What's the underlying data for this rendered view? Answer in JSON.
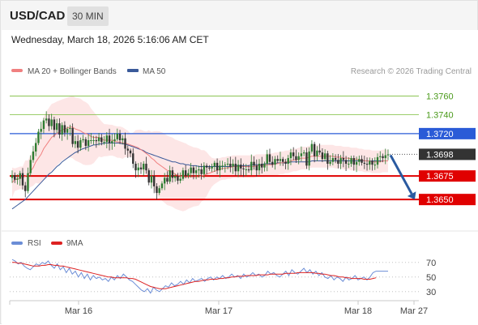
{
  "header": {
    "symbol": "USD/CAD",
    "interval": "30 MIN"
  },
  "datetime": "Wednesday, March 18, 2026 5:16:06 AM CET",
  "legend": {
    "ma20": "MA 20 + Bollinger Bands",
    "ma50": "MA 50"
  },
  "credit": "Research © 2026 Trading Central",
  "rsi_legend": {
    "rsi": "RSI",
    "ma9": "9MA"
  },
  "colors": {
    "ma20": "#f08080",
    "bollinger_fill": "#fde2e2",
    "ma50": "#3a5a9a",
    "up_candle": "#2e7d32",
    "down_candle": "#333333",
    "resistance": "#7cbd3c",
    "pivot": "#2a5bd7",
    "support": "#e00000",
    "current_price": "#333333",
    "arrow": "#2a5aa0",
    "rsi": "#6b8dd6",
    "rsi_ma": "#dd2222"
  },
  "chart_data": [
    {
      "type": "candlestick",
      "x_ticks": [
        "Mar 16",
        "Mar 17",
        "Mar 18",
        "Mar 27"
      ],
      "ylim": [
        1.362,
        1.3775
      ],
      "levels": [
        {
          "label": "1.3760",
          "value": 1.376,
          "role": "resistance"
        },
        {
          "label": "1.3740",
          "value": 1.374,
          "role": "resistance"
        },
        {
          "label": "1.3720",
          "value": 1.372,
          "role": "pivot"
        },
        {
          "label": "1.3675",
          "value": 1.3675,
          "role": "support"
        },
        {
          "label": "1.3650",
          "value": 1.365,
          "role": "support"
        }
      ],
      "current_price": {
        "label": "1.3698",
        "value": 1.3698
      },
      "forecast_arrow": {
        "from": 1.3698,
        "to": 1.365
      },
      "close": [
        1.3676,
        1.3671,
        1.3672,
        1.3678,
        1.3665,
        1.3659,
        1.3678,
        1.3692,
        1.3701,
        1.371,
        1.3722,
        1.3725,
        1.3734,
        1.3736,
        1.3728,
        1.3735,
        1.3724,
        1.3731,
        1.3719,
        1.3729,
        1.3721,
        1.3725,
        1.3726,
        1.3709,
        1.3712,
        1.3705,
        1.3713,
        1.3714,
        1.3707,
        1.3713,
        1.3713,
        1.3713,
        1.3712,
        1.3716,
        1.3711,
        1.3711,
        1.3718,
        1.371,
        1.3712,
        1.3714,
        1.372,
        1.3713,
        1.3715,
        1.3704,
        1.3702,
        1.3699,
        1.3688,
        1.3681,
        1.3684,
        1.3682,
        1.3688,
        1.3681,
        1.3668,
        1.3675,
        1.3664,
        1.3657,
        1.3662,
        1.3667,
        1.3673,
        1.3669,
        1.3681,
        1.3673,
        1.3675,
        1.367,
        1.3672,
        1.3681,
        1.3675,
        1.3678,
        1.3684,
        1.3678,
        1.3681,
        1.3682,
        1.3677,
        1.3686,
        1.3684,
        1.3683,
        1.3685,
        1.3689,
        1.3681,
        1.3686,
        1.3686,
        1.3687,
        1.3688,
        1.3685,
        1.3688,
        1.368,
        1.3687,
        1.3683,
        1.3682,
        1.3682,
        1.3681,
        1.369,
        1.3686,
        1.3681,
        1.3688,
        1.3684,
        1.3688,
        1.3698,
        1.369,
        1.3687,
        1.3693,
        1.3691,
        1.3693,
        1.369,
        1.3688,
        1.3694,
        1.37,
        1.3696,
        1.3692,
        1.3696,
        1.3699,
        1.37,
        1.3686,
        1.3701,
        1.3709,
        1.3696,
        1.3702,
        1.37,
        1.3693,
        1.3699,
        1.3688,
        1.369,
        1.3694,
        1.3692,
        1.3688,
        1.3694,
        1.3692,
        1.3688,
        1.3688,
        1.3694,
        1.3687,
        1.369,
        1.3693,
        1.3689,
        1.3688,
        1.3687,
        1.3691,
        1.3687,
        1.3687,
        1.3695,
        1.3696,
        1.3694,
        1.3697,
        1.3698
      ],
      "ma20": [
        1.3668,
        1.3671,
        1.3672,
        1.3673,
        1.3673,
        1.3675,
        1.3676,
        1.368,
        1.3684,
        1.369,
        1.3694,
        1.3698,
        1.3704,
        1.3708,
        1.3712,
        1.3716,
        1.3718,
        1.372,
        1.3722,
        1.3724,
        1.3725,
        1.3726,
        1.3727,
        1.3727,
        1.3725,
        1.3724,
        1.3723,
        1.3721,
        1.372,
        1.3719,
        1.3717,
        1.3716,
        1.3716,
        1.3716,
        1.3714,
        1.3713,
        1.3713,
        1.3713,
        1.3713,
        1.3712,
        1.3711,
        1.3711,
        1.371,
        1.371,
        1.3709,
        1.3708,
        1.3707,
        1.3706,
        1.3705,
        1.3703,
        1.3701,
        1.3699,
        1.3697,
        1.3694,
        1.3692,
        1.3689,
        1.3687,
        1.3685,
        1.3683,
        1.3681,
        1.368,
        1.3679,
        1.3677,
        1.3676,
        1.3675,
        1.3674,
        1.3674,
        1.3674,
        1.3674,
        1.3674,
        1.3674,
        1.3674,
        1.3675,
        1.3676,
        1.3677,
        1.3678,
        1.3679,
        1.368,
        1.3681,
        1.3682,
        1.3683,
        1.3683,
        1.3684,
        1.3684,
        1.3685,
        1.3685,
        1.3685,
        1.3685,
        1.3685,
        1.3685,
        1.3685,
        1.3685,
        1.3685,
        1.3686,
        1.3686,
        1.3686,
        1.3686,
        1.3687,
        1.3687,
        1.3687,
        1.3688,
        1.3688,
        1.3689,
        1.3689,
        1.369,
        1.369,
        1.3691,
        1.3692,
        1.3692,
        1.3693,
        1.3694,
        1.3694,
        1.3694,
        1.3695,
        1.3696,
        1.3696,
        1.3696,
        1.3696,
        1.3696,
        1.3696,
        1.3696,
        1.3696,
        1.3696,
        1.3695,
        1.3695,
        1.3695,
        1.3694,
        1.3694,
        1.3694,
        1.3693,
        1.3693,
        1.3693,
        1.3692,
        1.3692,
        1.3691,
        1.3691,
        1.3691,
        1.369,
        1.369,
        1.369,
        1.369,
        1.3691,
        1.3691,
        1.3691
      ],
      "ma50": [
        1.364,
        1.3642,
        1.3644,
        1.3646,
        1.3648,
        1.365,
        1.3653,
        1.3656,
        1.3659,
        1.3662,
        1.3665,
        1.3668,
        1.3671,
        1.3674,
        1.3677,
        1.3679,
        1.3682,
        1.3685,
        1.3687,
        1.369,
        1.3692,
        1.3694,
        1.3696,
        1.3698,
        1.37,
        1.3701,
        1.3703,
        1.3704,
        1.3705,
        1.3706,
        1.3707,
        1.3708,
        1.3708,
        1.3709,
        1.3709,
        1.371,
        1.371,
        1.371,
        1.371,
        1.371,
        1.371,
        1.371,
        1.3709,
        1.3709,
        1.3708,
        1.3707,
        1.3706,
        1.3705,
        1.3704,
        1.3703,
        1.3702,
        1.37,
        1.3699,
        1.3698,
        1.3697,
        1.3696,
        1.3695,
        1.3694,
        1.3693,
        1.3692,
        1.3691,
        1.369,
        1.369,
        1.3689,
        1.3688,
        1.3688,
        1.3687,
        1.3687,
        1.3686,
        1.3686,
        1.3686,
        1.3685,
        1.3685,
        1.3685,
        1.3685,
        1.3685,
        1.3685,
        1.3685,
        1.3685,
        1.3685,
        1.3685,
        1.3685,
        1.3685,
        1.3685,
        1.3685,
        1.3686,
        1.3686,
        1.3686,
        1.3686,
        1.3686,
        1.3686,
        1.3687,
        1.3687,
        1.3687,
        1.3687,
        1.3687,
        1.3688,
        1.3688,
        1.3688,
        1.3688,
        1.3688,
        1.3689,
        1.3689,
        1.3689,
        1.3689,
        1.3689,
        1.369,
        1.369,
        1.369,
        1.369,
        1.369,
        1.369,
        1.369,
        1.369,
        1.3691,
        1.3691,
        1.3691,
        1.3691,
        1.3691,
        1.3691,
        1.3691,
        1.3691,
        1.3691,
        1.3691,
        1.3691,
        1.3691,
        1.3691,
        1.3691,
        1.3691,
        1.3691,
        1.3691,
        1.3691,
        1.3691,
        1.3691,
        1.3691,
        1.3691,
        1.3691,
        1.3691,
        1.3691,
        1.3691,
        1.3691,
        1.3691,
        1.3691,
        1.3691
      ]
    },
    {
      "type": "line",
      "yticks": [
        "70",
        "50",
        "30"
      ],
      "ylim": [
        22,
        82
      ],
      "series": [
        {
          "name": "RSI",
          "values": [
            74,
            72,
            68,
            70,
            65,
            62,
            60,
            64,
            68,
            66,
            70,
            68,
            72,
            66,
            62,
            68,
            60,
            64,
            56,
            62,
            54,
            58,
            50,
            56,
            48,
            54,
            46,
            52,
            48,
            50,
            46,
            48,
            44,
            50,
            46,
            52,
            48,
            54,
            50,
            46,
            44,
            40,
            36,
            32,
            30,
            34,
            28,
            36,
            32,
            30,
            34,
            38,
            36,
            42,
            38,
            40,
            44,
            40,
            46,
            42,
            48,
            44,
            46,
            48,
            44,
            48,
            50,
            46,
            50,
            48,
            52,
            48,
            50,
            54,
            50,
            52,
            48,
            54,
            50,
            52,
            56,
            52,
            54,
            50,
            52,
            58,
            54,
            56,
            52,
            50,
            54,
            58,
            52,
            60,
            56,
            54,
            58,
            62,
            56,
            60,
            54,
            58,
            52,
            56,
            50,
            48,
            52,
            46,
            50,
            48,
            44,
            50,
            46,
            48,
            52,
            46,
            48,
            50,
            46,
            50,
            56,
            58,
            58,
            58,
            58,
            58
          ]
        },
        {
          "name": "9MA",
          "values": [
            70,
            70,
            69,
            69,
            68,
            67,
            66,
            65,
            65,
            65,
            66,
            66,
            67,
            67,
            66,
            66,
            65,
            65,
            64,
            63,
            62,
            61,
            60,
            59,
            58,
            57,
            56,
            55,
            54,
            53,
            52,
            51,
            50,
            50,
            49,
            49,
            49,
            49,
            49,
            48,
            48,
            47,
            45,
            43,
            41,
            39,
            37,
            36,
            35,
            34,
            34,
            34,
            35,
            36,
            37,
            38,
            39,
            40,
            41,
            42,
            43,
            44,
            44,
            45,
            46,
            46,
            47,
            47,
            47,
            48,
            48,
            49,
            49,
            50,
            50,
            51,
            51,
            51,
            52,
            52,
            52,
            52,
            53,
            53,
            53,
            53,
            54,
            54,
            54,
            54,
            54,
            55,
            55,
            55,
            55,
            56,
            56,
            56,
            56,
            56,
            56,
            55,
            55,
            54,
            54,
            53,
            52,
            52,
            51,
            50,
            50,
            49,
            49,
            48,
            48,
            48,
            48,
            47,
            47,
            47,
            48,
            49
          ]
        }
      ]
    }
  ]
}
